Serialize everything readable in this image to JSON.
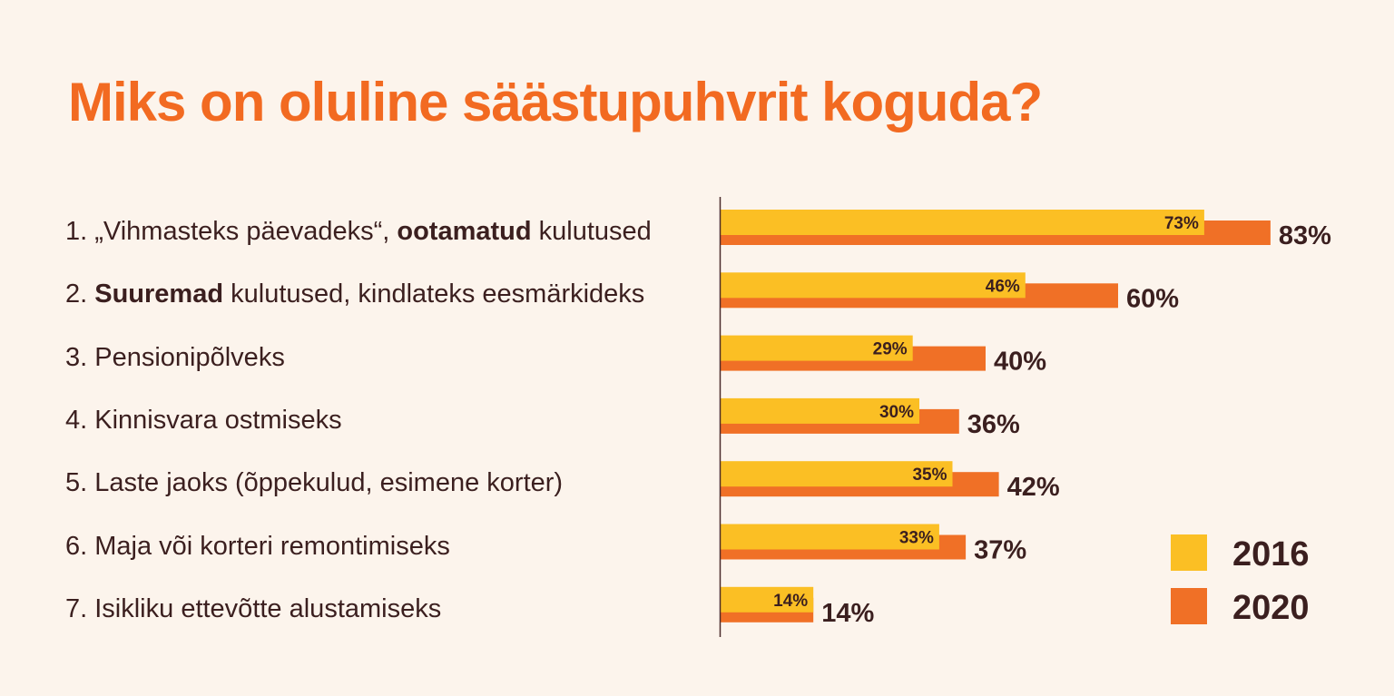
{
  "title": "Miks on oluline säästupuhvrit koguda?",
  "colors": {
    "s2016": "#fbbf24",
    "s2020": "#f07026",
    "title": "#f26a21",
    "text": "#3b1f1f"
  },
  "chart_data": {
    "type": "bar",
    "orientation": "horizontal",
    "title": "Miks on oluline säästupuhvrit koguda?",
    "categories": [
      [
        {
          "t": "1. „Vihmasteks päevadeks“, "
        },
        {
          "t": "ootamatud",
          "b": true
        },
        {
          "t": " kulutused"
        }
      ],
      [
        {
          "t": "2. "
        },
        {
          "t": "Suuremad",
          "b": true
        },
        {
          "t": " kulutused, kindlateks eesmärkideks"
        }
      ],
      [
        {
          "t": "3. Pensionipõlveks"
        }
      ],
      [
        {
          "t": "4. Kinnisvara ostmiseks"
        }
      ],
      [
        {
          "t": "5. Laste jaoks (õppekulud, esimene korter)"
        }
      ],
      [
        {
          "t": "6. Maja või korteri remontimiseks"
        }
      ],
      [
        {
          "t": "7. Isikliku ettevõtte alustamiseks"
        }
      ]
    ],
    "series": [
      {
        "name": "2016",
        "values": [
          73,
          46,
          29,
          30,
          35,
          33,
          14
        ]
      },
      {
        "name": "2020",
        "values": [
          83,
          60,
          40,
          36,
          42,
          37,
          14
        ]
      }
    ],
    "value_suffix": "%",
    "xlim": [
      0,
      100
    ],
    "legend": "bottom-right"
  }
}
